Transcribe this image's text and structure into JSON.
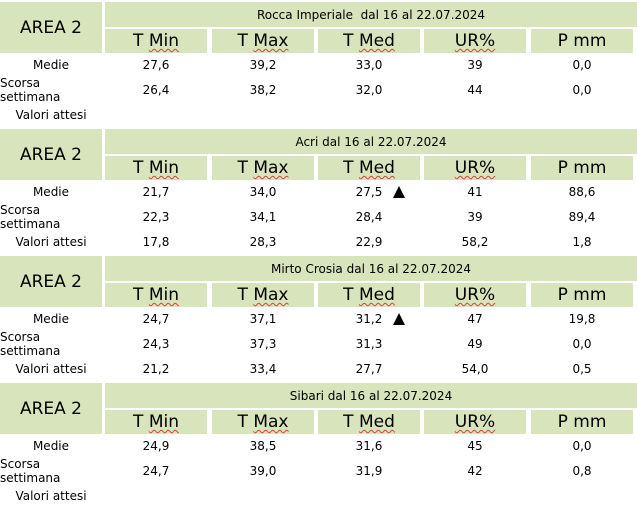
{
  "area_label": "AREA 2",
  "headers": [
    "T Min",
    "T Max",
    "T Med",
    "UR%",
    "P mm"
  ],
  "row_labels": [
    "Medie",
    "Scorsa settimana",
    "Valori attesi"
  ],
  "blocks": [
    {
      "title": "Rocca Imperiale  dal 16 al 22.07.2024",
      "medie": [
        "27,6",
        "39,2",
        "33,0",
        "39",
        "0,0"
      ],
      "scorsa": [
        "26,4",
        "38,2",
        "32,0",
        "44",
        "0,0"
      ],
      "attesi": [
        "",
        "",
        "",
        "",
        ""
      ],
      "medie_trend": ""
    },
    {
      "title": "Acri dal 16 al 22.07.2024",
      "medie": [
        "21,7",
        "34,0",
        "27,5",
        "41",
        "88,6"
      ],
      "scorsa": [
        "22,3",
        "34,1",
        "28,4",
        "39",
        "89,4"
      ],
      "attesi": [
        "17,8",
        "28,3",
        "22,9",
        "58,2",
        "1,8"
      ],
      "medie_trend": "up-triangle"
    },
    {
      "title": "Mirto Crosia dal 16 al 22.07.2024",
      "medie": [
        "24,7",
        "37,1",
        "31,2",
        "47",
        "19,8"
      ],
      "scorsa": [
        "24,3",
        "37,3",
        "31,3",
        "49",
        "0,0"
      ],
      "attesi": [
        "21,2",
        "33,4",
        "27,7",
        "54,0",
        "0,5"
      ],
      "medie_trend": "up-triangle"
    },
    {
      "title": "Sibari dal 16 al 22.07.2024",
      "medie": [
        "24,9",
        "38,5",
        "31,6",
        "45",
        "0,0"
      ],
      "scorsa": [
        "24,7",
        "39,0",
        "31,9",
        "42",
        "0,8"
      ],
      "attesi": [
        "",
        "",
        "",
        "",
        ""
      ],
      "medie_trend": ""
    }
  ],
  "colors": {
    "header_bg": "#d8e4bc",
    "spellcheck_underline": "#d84040"
  }
}
